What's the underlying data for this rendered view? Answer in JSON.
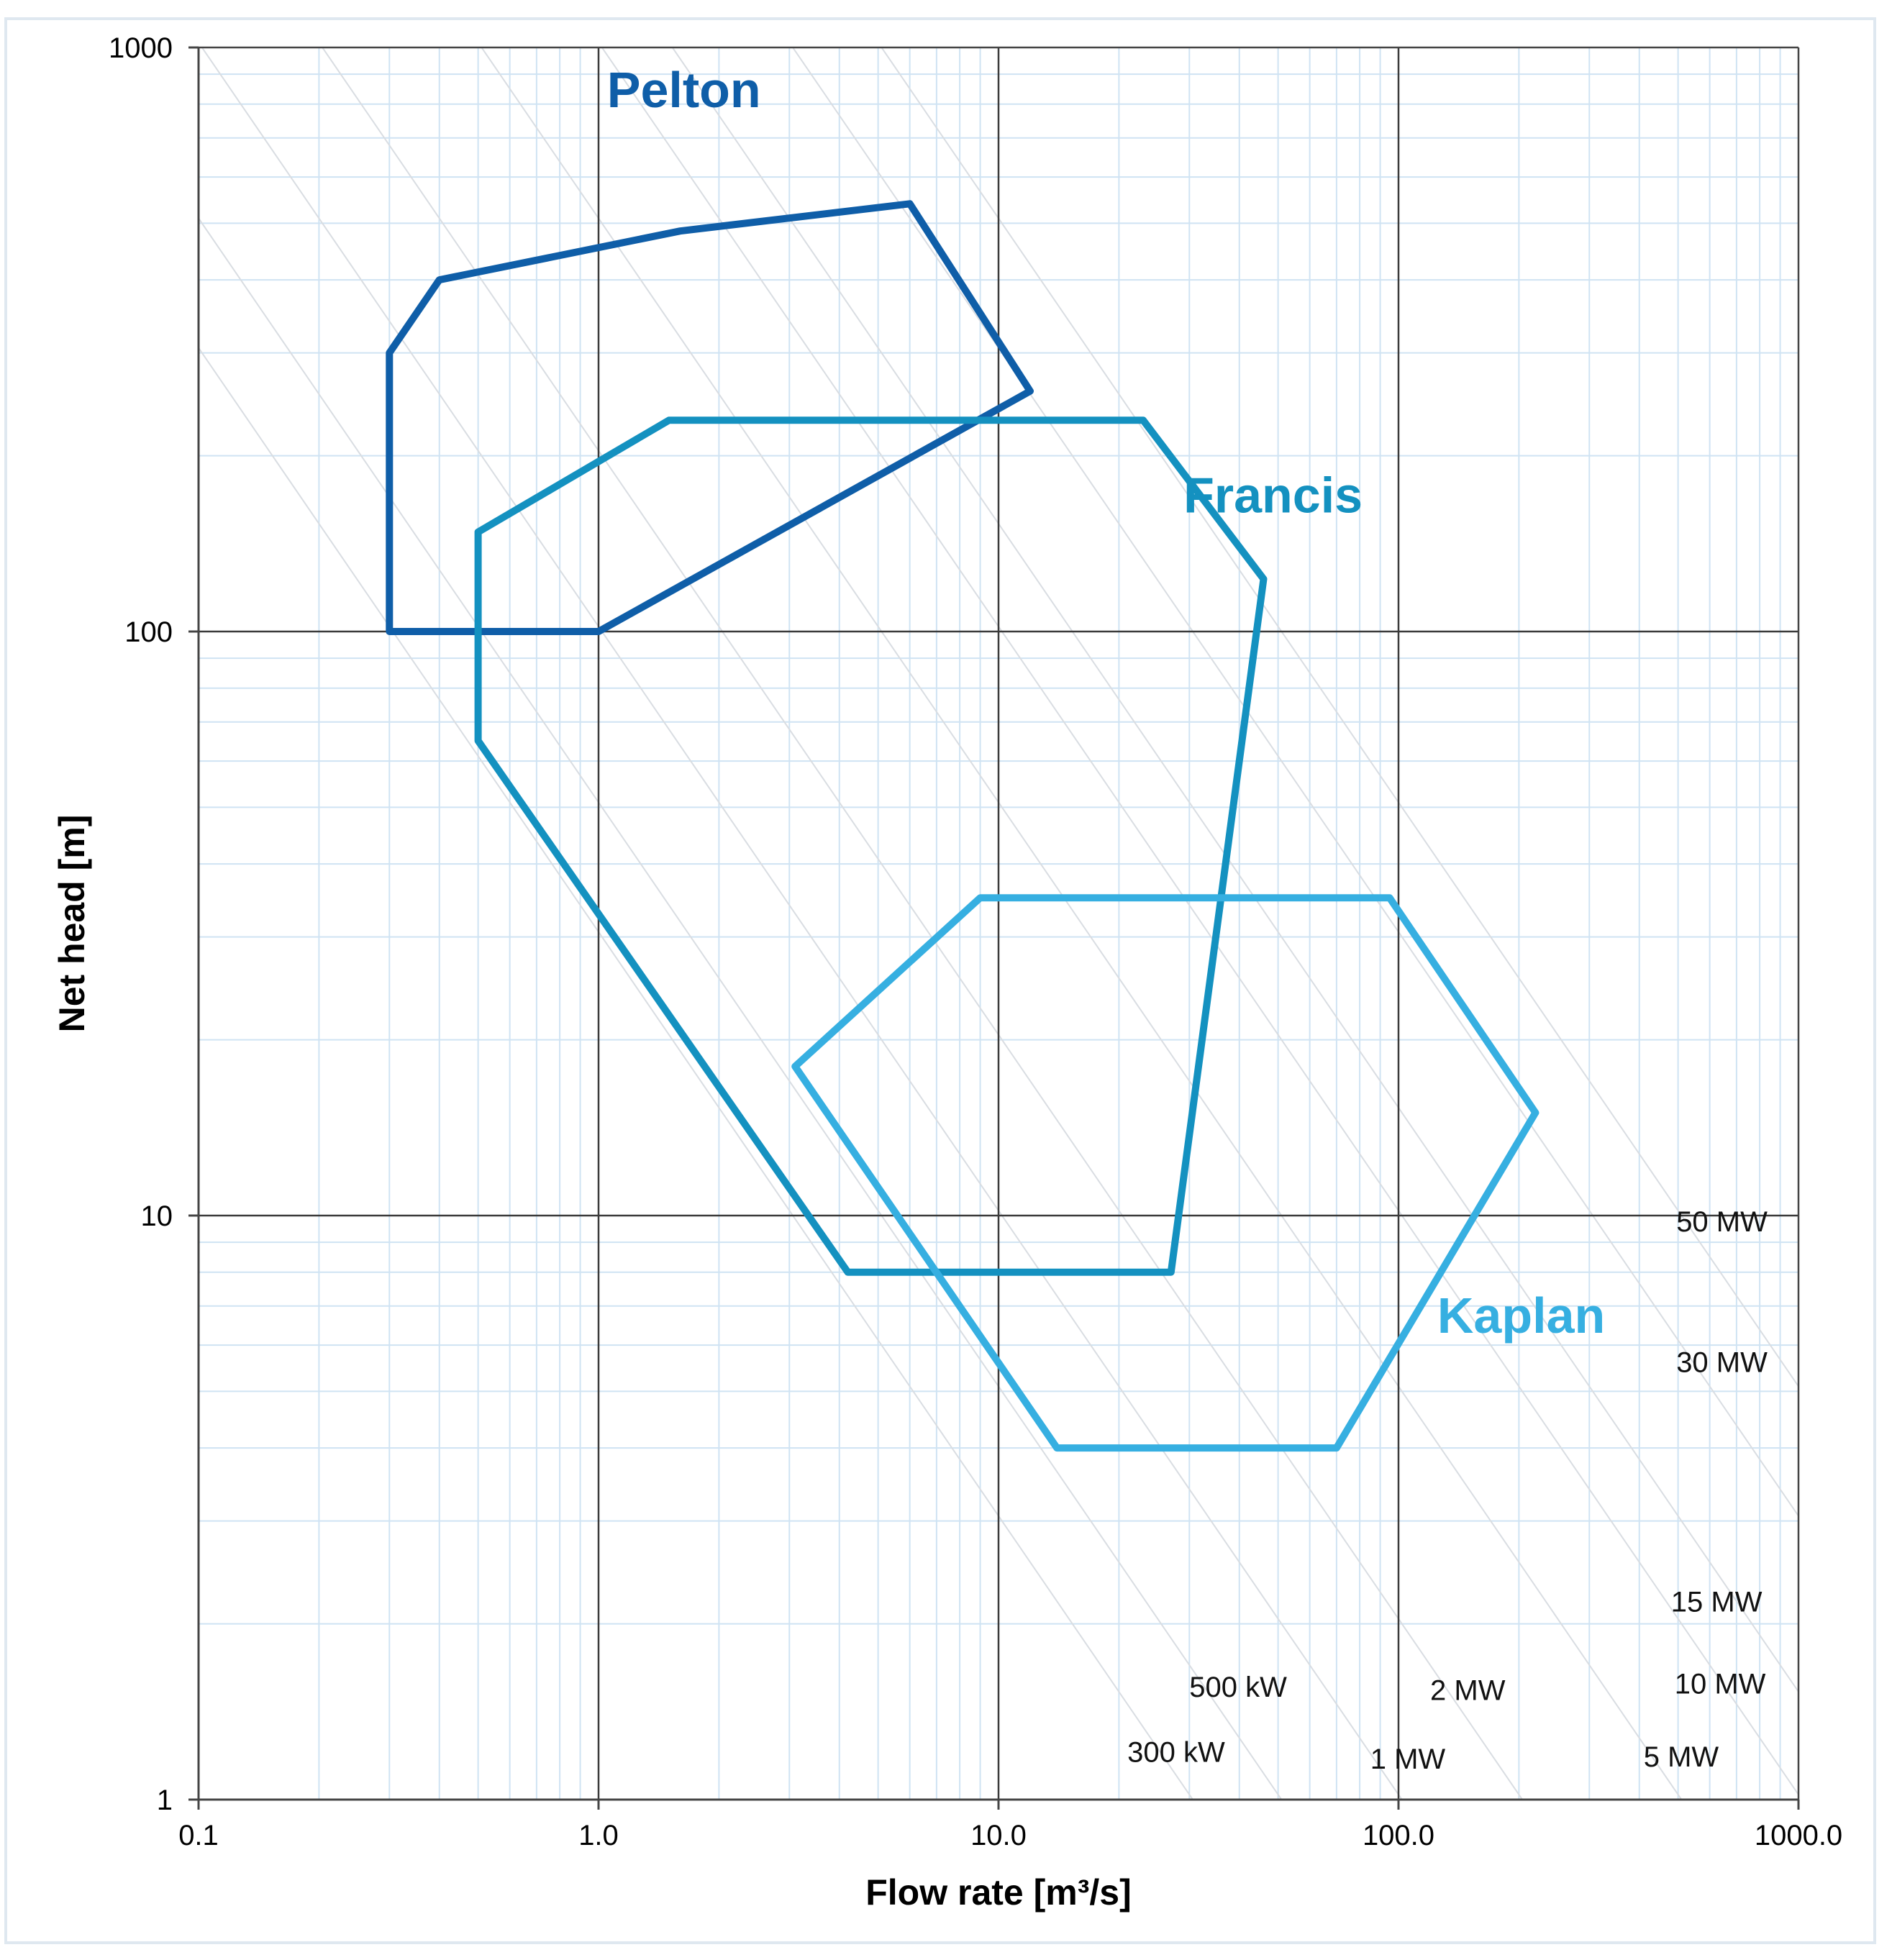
{
  "chart_data": {
    "type": "region",
    "title": "",
    "xlabel": "Flow rate [m³/s]",
    "ylabel": "Net head [m]",
    "x_scale": "log",
    "y_scale": "log",
    "xlim": [
      0.1,
      1000
    ],
    "ylim": [
      1,
      1000
    ],
    "grid": true,
    "x_ticks": [
      {
        "value": 0.1,
        "label": "0.1"
      },
      {
        "value": 1,
        "label": "1.0"
      },
      {
        "value": 10,
        "label": "10.0"
      },
      {
        "value": 100,
        "label": "100.0"
      },
      {
        "value": 1000,
        "label": "1000.0"
      }
    ],
    "y_ticks": [
      {
        "value": 1,
        "label": "1"
      },
      {
        "value": 10,
        "label": "10"
      },
      {
        "value": 100,
        "label": "100"
      },
      {
        "value": 1000,
        "label": "1000"
      }
    ],
    "series": [
      {
        "name": "Pelton",
        "color": "#0f5ea8",
        "label_at": [
          1.05,
          790
        ],
        "polygon": [
          [
            0.3,
            100
          ],
          [
            0.3,
            300
          ],
          [
            0.4,
            400
          ],
          [
            1.6,
            485
          ],
          [
            6.0,
            540
          ],
          [
            12.0,
            258
          ],
          [
            1.0,
            100
          ]
        ]
      },
      {
        "name": "Francis",
        "color": "#1491c0",
        "label_at": [
          29,
          160
        ],
        "polygon": [
          [
            1.5,
            230
          ],
          [
            23.0,
            230
          ],
          [
            46.0,
            123
          ],
          [
            27.0,
            8.0
          ],
          [
            4.2,
            8.0
          ],
          [
            0.5,
            65
          ],
          [
            0.5,
            148
          ]
        ]
      },
      {
        "name": "Kaplan",
        "color": "#36afe1",
        "label_at": [
          125,
          6.3
        ],
        "polygon": [
          [
            9.0,
            35
          ],
          [
            95.0,
            35
          ],
          [
            220.0,
            15
          ],
          [
            70.0,
            4.0
          ],
          [
            14.0,
            4.0
          ],
          [
            3.1,
            18
          ]
        ]
      }
    ],
    "power_lines": [
      {
        "label": "300 kW",
        "q_at_1m": 30.6,
        "label_at": [
          21,
          1.16
        ]
      },
      {
        "label": "500 kW",
        "q_at_1m": 51.0,
        "label_at": [
          30,
          1.5
        ]
      },
      {
        "label": "1 MW",
        "q_at_1m": 102.0,
        "label_at": [
          85,
          1.13
        ]
      },
      {
        "label": "2 MW",
        "q_at_1m": 204.0,
        "label_at": [
          120,
          1.48
        ]
      },
      {
        "label": "5 MW",
        "q_at_1m": 510.0,
        "label_at": [
          410,
          1.14
        ]
      },
      {
        "label": "10 MW",
        "q_at_1m": 1020.0,
        "label_at": [
          490,
          1.52
        ]
      },
      {
        "label": "15 MW",
        "q_at_1m": 1530.0,
        "label_at": [
          480,
          2.1
        ]
      },
      {
        "label": "30 MW",
        "q_at_1m": 3060.0,
        "label_at": [
          495,
          5.4
        ]
      },
      {
        "label": "50 MW",
        "q_at_1m": 5100.0,
        "label_at": [
          495,
          9.4
        ]
      }
    ]
  }
}
